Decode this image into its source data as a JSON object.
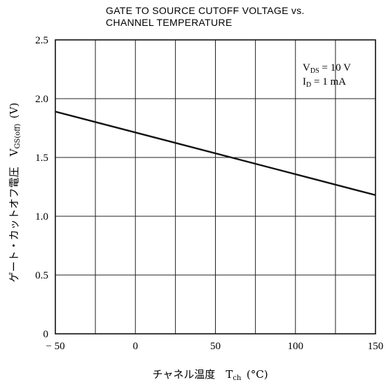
{
  "chart_data": {
    "type": "line",
    "title_lines": [
      "GATE TO SOURCE CUTOFF VOLTAGE vs.",
      "CHANNEL TEMPERATURE"
    ],
    "xlabel": "チャネル温度",
    "xlabel_symbol": "T",
    "xlabel_symbol_sub": "ch",
    "xlabel_unit": "(°C)",
    "ylabel": "ゲート・カットオフ電圧",
    "ylabel_symbol": "V",
    "ylabel_symbol_sub": "GS(off)",
    "ylabel_unit": "(V)",
    "xlim": [
      -50,
      150
    ],
    "ylim": [
      0,
      2.5
    ],
    "x_ticks": [
      -50,
      0,
      50,
      100,
      150
    ],
    "x_tick_labels": [
      "− 50",
      "0",
      "50",
      "100",
      "150"
    ],
    "y_ticks": [
      0,
      0.5,
      1.0,
      1.5,
      2.0,
      2.5
    ],
    "y_tick_labels": [
      "0",
      "0.5",
      "1.0",
      "1.5",
      "2.0",
      "2.5"
    ],
    "grid": true,
    "x_minor_grid_step": 25,
    "y_minor_grid_step": 0.5,
    "annotations": [
      {
        "symbol": "V",
        "sub": "DS",
        "text": " = 10 V"
      },
      {
        "symbol": "I",
        "sub": "D",
        "text": " = 1 mA"
      }
    ],
    "series": [
      {
        "x": [
          -50,
          150
        ],
        "y": [
          1.89,
          1.18
        ]
      }
    ],
    "colors": {
      "line": "#111111",
      "grid": "#222222",
      "background": "#ffffff"
    }
  }
}
